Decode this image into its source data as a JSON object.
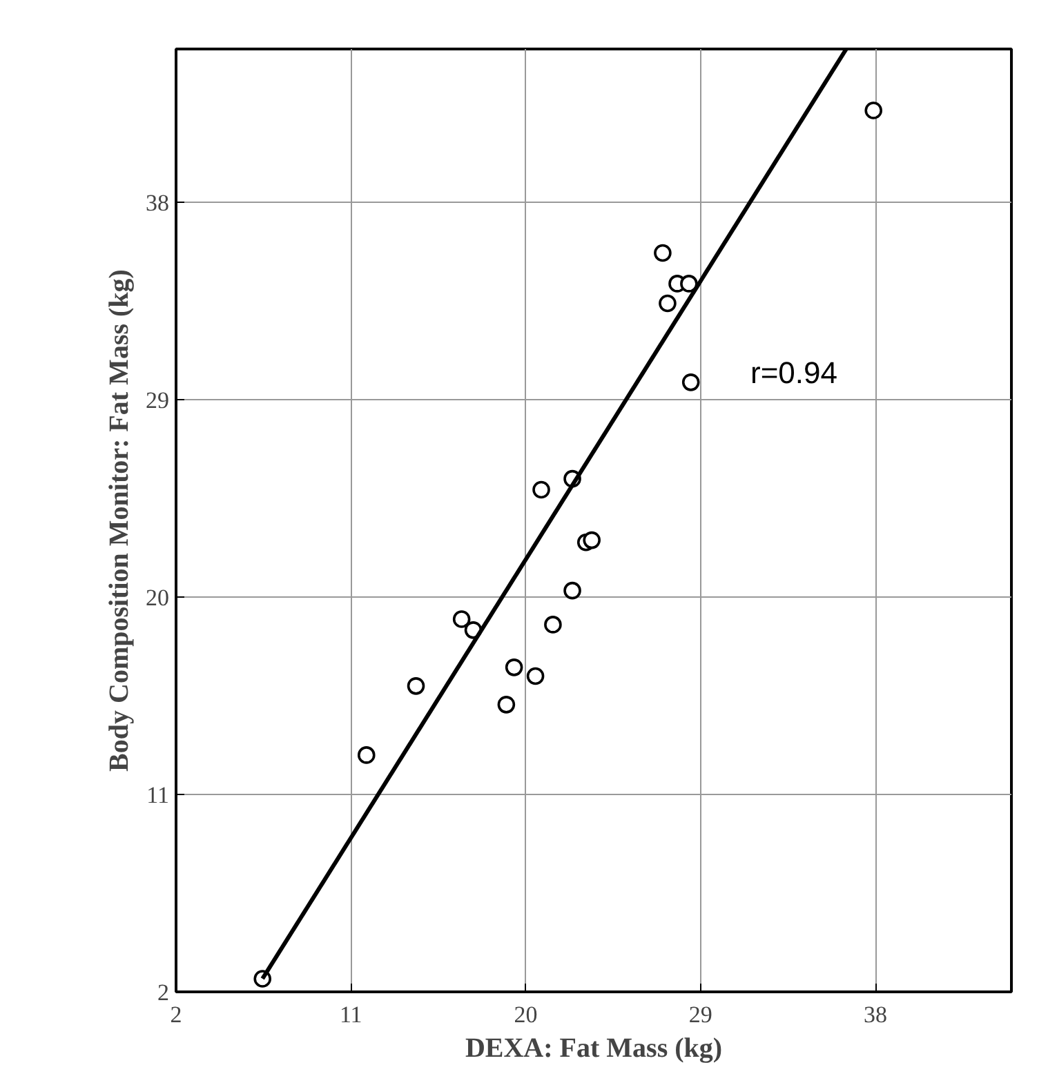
{
  "chart_data": {
    "type": "scatter",
    "xlabel": "DEXA: Fat Mass (kg)",
    "ylabel": "Body Composition Monitor: Fat Mass (kg)",
    "xlim": [
      2,
      45
    ],
    "ylim": [
      2,
      45
    ],
    "xticks": [
      2,
      11,
      20,
      29,
      38
    ],
    "yticks": [
      2,
      11,
      20,
      29,
      38
    ],
    "grid": true,
    "annotations": [
      "r=0.94"
    ],
    "series": [
      {
        "marker": "circle",
        "color": "#000000",
        "x": [
          6.45,
          11.8,
          14.35,
          16.7,
          17.3,
          19.0,
          19.4,
          20.5,
          20.8,
          21.4,
          22.4,
          22.4,
          23.1,
          23.4,
          27.05,
          27.3,
          27.8,
          28.4,
          28.5,
          37.9
        ],
        "values": [
          2.6,
          12.8,
          15.95,
          19.0,
          18.5,
          15.1,
          16.8,
          16.4,
          24.9,
          18.75,
          20.3,
          25.4,
          22.5,
          22.6,
          35.7,
          33.4,
          34.3,
          34.3,
          29.8,
          42.2
        ]
      },
      {
        "type": "line",
        "color": "#000000",
        "x": [
          6.45,
          36.5
        ],
        "values": [
          2.6,
          45
        ]
      }
    ]
  }
}
